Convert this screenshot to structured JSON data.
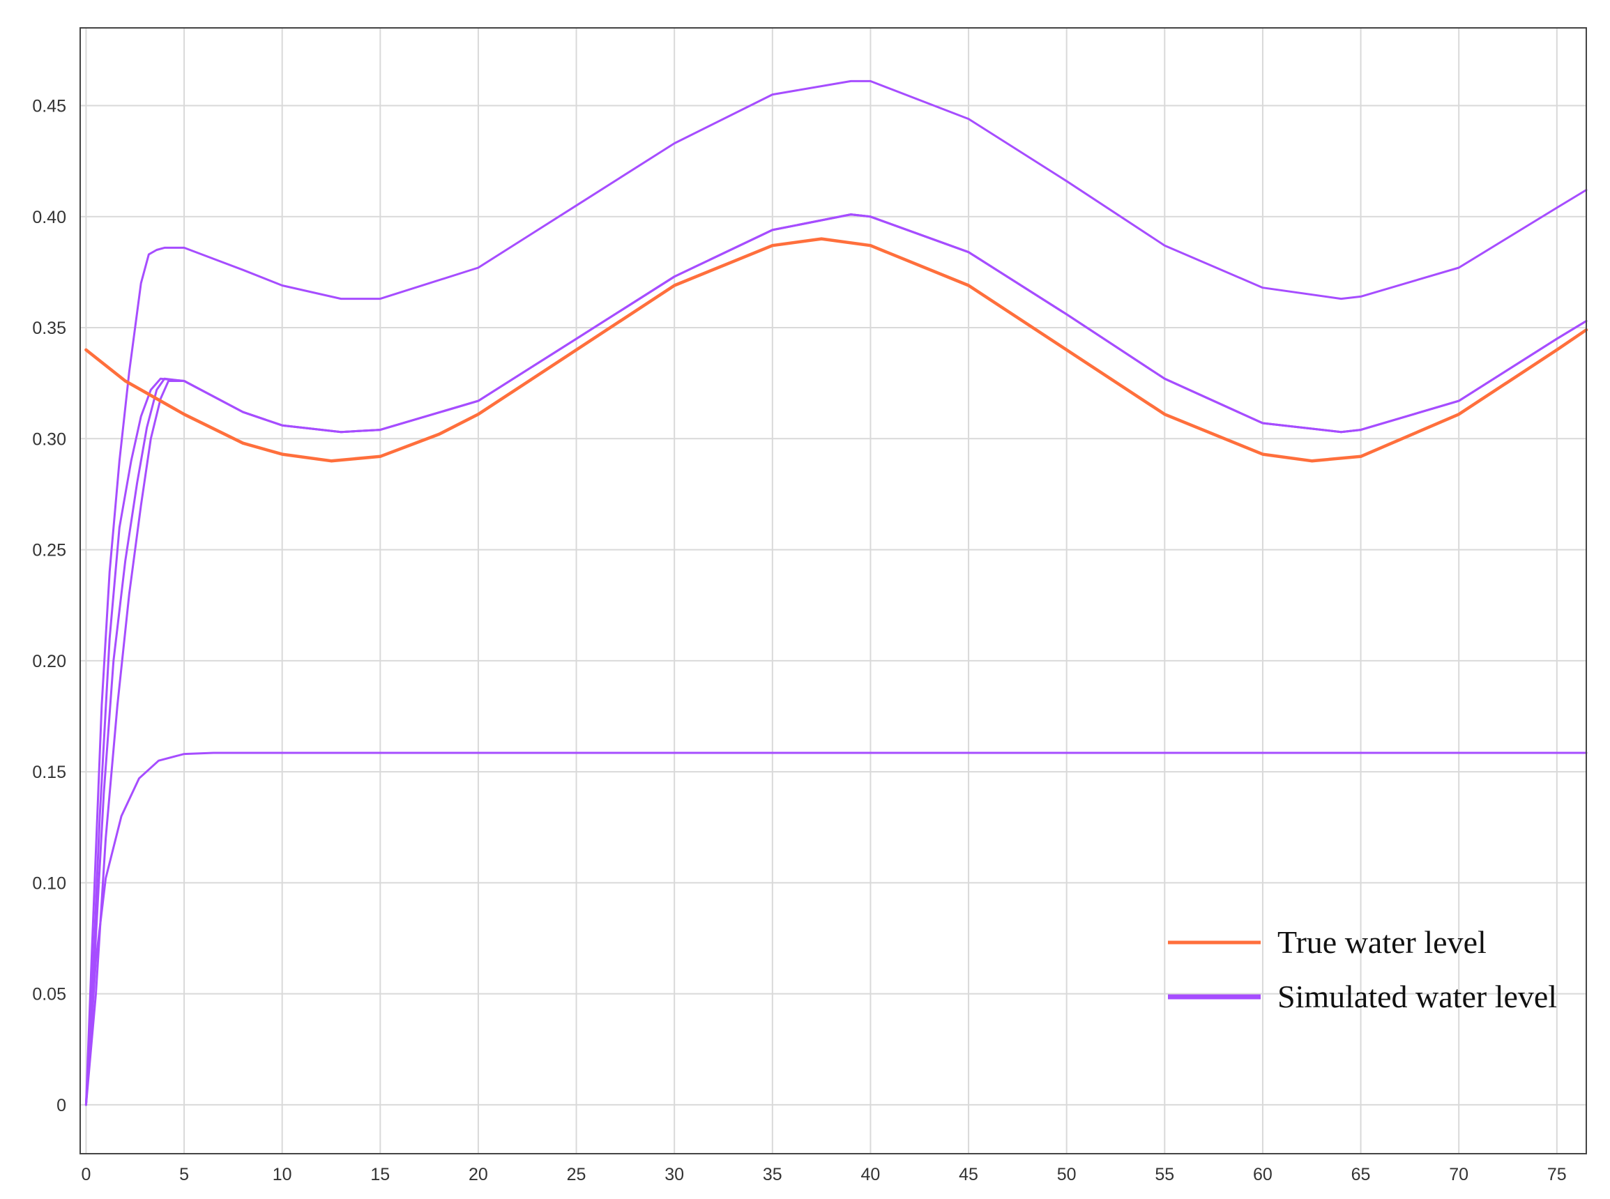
{
  "chart_data": {
    "type": "line",
    "title": "",
    "xlabel": "",
    "ylabel": "",
    "xlim": [
      -0.3,
      76.5
    ],
    "ylim": [
      -0.022,
      0.485
    ],
    "x_ticks": [
      0,
      5,
      10,
      15,
      20,
      25,
      30,
      35,
      40,
      45,
      50,
      55,
      60,
      65,
      70,
      75
    ],
    "x_tick_labels": [
      "0",
      "5",
      "10",
      "15",
      "20",
      "25",
      "30",
      "35",
      "40",
      "45",
      "50",
      "55",
      "60",
      "65",
      "70",
      "75"
    ],
    "y_ticks": [
      0,
      0.05,
      0.1,
      0.15,
      0.2,
      0.25,
      0.3,
      0.35,
      0.4,
      0.45
    ],
    "y_tick_labels": [
      "0",
      "0.05",
      "0.10",
      "0.15",
      "0.20",
      "0.25",
      "0.30",
      "0.35",
      "0.40",
      "0.45"
    ],
    "grid": true,
    "legend_position": "bottom-right",
    "legend": [
      {
        "label": "True water level",
        "color": "#ff6f3c"
      },
      {
        "label": "Simulated water level",
        "color": "#a64dff"
      }
    ],
    "series": [
      {
        "name": "True water level",
        "color": "#ff6f3c",
        "x": [
          0,
          2,
          5,
          8,
          10,
          12.5,
          15,
          18,
          20,
          25,
          30,
          35,
          37.5,
          40,
          45,
          50,
          55,
          60,
          62.5,
          65,
          70,
          75,
          76.5
        ],
        "y": [
          0.34,
          0.326,
          0.311,
          0.298,
          0.293,
          0.29,
          0.292,
          0.302,
          0.311,
          0.34,
          0.369,
          0.387,
          0.39,
          0.387,
          0.369,
          0.34,
          0.311,
          0.293,
          0.29,
          0.292,
          0.311,
          0.34,
          0.349
        ]
      },
      {
        "name": "",
        "color": "#a64dff",
        "x": [
          0,
          0.3,
          0.7,
          1.2,
          1.7,
          2.3,
          2.8,
          3.3,
          3.8,
          5,
          8,
          10,
          13,
          15,
          20,
          25,
          30,
          35,
          39,
          40,
          45,
          50,
          55,
          60,
          64,
          65,
          70,
          75,
          76.5
        ],
        "y": [
          0.0,
          0.05,
          0.13,
          0.21,
          0.26,
          0.29,
          0.31,
          0.322,
          0.327,
          0.326,
          0.312,
          0.306,
          0.303,
          0.304,
          0.317,
          0.345,
          0.373,
          0.394,
          0.401,
          0.4,
          0.384,
          0.356,
          0.327,
          0.307,
          0.303,
          0.304,
          0.317,
          0.345,
          0.353
        ]
      },
      {
        "name": "",
        "color": "#a64dff",
        "x": [
          0,
          0.4,
          0.9,
          1.4,
          2.0,
          2.6,
          3.1,
          3.6,
          4.0,
          5,
          8,
          10,
          13,
          15,
          20,
          25,
          30,
          35,
          39,
          40,
          45,
          50,
          55,
          60,
          64,
          65,
          70,
          75,
          76.5
        ],
        "y": [
          0.0,
          0.06,
          0.14,
          0.2,
          0.245,
          0.28,
          0.305,
          0.322,
          0.327,
          0.326,
          0.312,
          0.306,
          0.303,
          0.304,
          0.317,
          0.345,
          0.373,
          0.394,
          0.401,
          0.4,
          0.384,
          0.356,
          0.327,
          0.307,
          0.303,
          0.304,
          0.317,
          0.345,
          0.353
        ]
      },
      {
        "name": "",
        "color": "#a64dff",
        "x": [
          0,
          0.5,
          1.0,
          1.6,
          2.2,
          2.8,
          3.3,
          3.8,
          4.2,
          5,
          8,
          10,
          13,
          15,
          20,
          25,
          30,
          35,
          39,
          40,
          45,
          50,
          55,
          60,
          64,
          65,
          70,
          75,
          76.5
        ],
        "y": [
          0.0,
          0.05,
          0.12,
          0.18,
          0.23,
          0.27,
          0.3,
          0.318,
          0.326,
          0.326,
          0.312,
          0.306,
          0.303,
          0.304,
          0.317,
          0.345,
          0.373,
          0.394,
          0.401,
          0.4,
          0.384,
          0.356,
          0.327,
          0.307,
          0.303,
          0.304,
          0.317,
          0.345,
          0.353
        ]
      },
      {
        "name": "",
        "color": "#a64dff",
        "x": [
          0,
          0.3,
          0.8,
          1.2,
          1.7,
          2.2,
          2.8,
          3.2,
          3.6,
          4.0,
          5,
          8,
          10,
          13,
          15,
          20,
          25,
          30,
          35,
          39,
          40,
          45,
          50,
          55,
          60,
          64,
          65,
          70,
          75,
          76.5
        ],
        "y": [
          0.0,
          0.07,
          0.18,
          0.24,
          0.29,
          0.33,
          0.37,
          0.383,
          0.385,
          0.386,
          0.386,
          0.376,
          0.369,
          0.363,
          0.363,
          0.377,
          0.405,
          0.433,
          0.455,
          0.461,
          0.461,
          0.444,
          0.416,
          0.387,
          0.368,
          0.363,
          0.364,
          0.377,
          0.404,
          0.412
        ]
      },
      {
        "name": "",
        "color": "#a64dff",
        "x": [
          0,
          0.5,
          1.0,
          1.8,
          2.7,
          3.7,
          5.0,
          6.5,
          8,
          76.5
        ],
        "y": [
          0.0,
          0.065,
          0.102,
          0.13,
          0.147,
          0.155,
          0.158,
          0.1585,
          0.1585,
          0.1585
        ]
      }
    ]
  }
}
